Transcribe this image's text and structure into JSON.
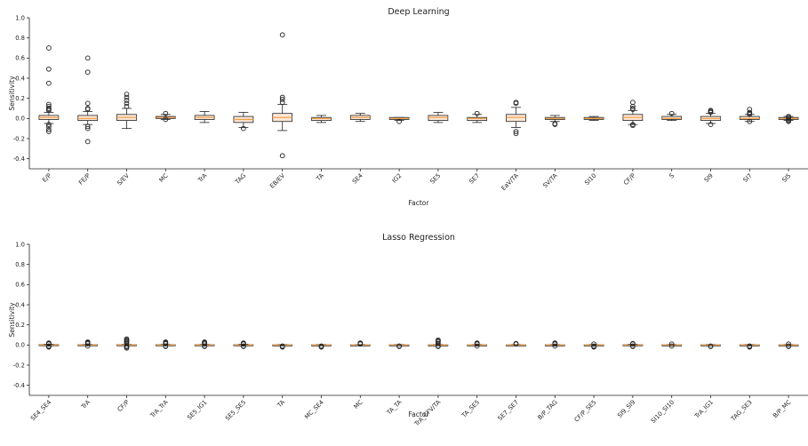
{
  "chart_data": [
    {
      "type": "box",
      "title": "Deep Learning",
      "xlabel": "Factor",
      "ylabel": "Sensitivity",
      "ylim": [
        -0.5,
        1.0
      ],
      "yticks": [
        "1.0",
        "0.8",
        "0.6",
        "0.4",
        "0.2",
        "0.0",
        "-0.2",
        "-0.4"
      ],
      "ytick_values": [
        1.0,
        0.8,
        0.6,
        0.4,
        0.2,
        0.0,
        -0.2,
        -0.4
      ],
      "categories": [
        "E/P",
        "FE/P",
        "S/EV",
        "MC",
        "TrA",
        "TAG",
        "EB/EV",
        "TA",
        "SE4",
        "IG2",
        "SE5",
        "SE7",
        "EaV/TA",
        "SV/TA",
        "SI10",
        "CF/P",
        "S",
        "SI9",
        "SI7",
        "SI5"
      ],
      "boxes": [
        {
          "q1": -0.01,
          "med": 0.01,
          "q3": 0.03,
          "wlo": -0.05,
          "whi": 0.06,
          "fliers": [
            0.7,
            0.49,
            0.35,
            0.14,
            0.12,
            0.1,
            0.09,
            0.08,
            -0.06,
            -0.08,
            -0.11,
            -0.13
          ]
        },
        {
          "q1": -0.02,
          "med": 0.0,
          "q3": 0.03,
          "wlo": -0.06,
          "whi": 0.07,
          "fliers": [
            0.6,
            0.46,
            0.15,
            0.1,
            0.09,
            -0.08,
            -0.1,
            -0.23
          ]
        },
        {
          "q1": -0.02,
          "med": 0.01,
          "q3": 0.04,
          "wlo": -0.1,
          "whi": 0.1,
          "fliers": [
            0.24,
            0.21,
            0.18,
            0.15,
            0.12
          ]
        },
        {
          "q1": 0.0,
          "med": 0.01,
          "q3": 0.02,
          "wlo": -0.01,
          "whi": 0.04,
          "fliers": [
            0.05,
            -0.01
          ]
        },
        {
          "q1": -0.01,
          "med": 0.01,
          "q3": 0.03,
          "wlo": -0.04,
          "whi": 0.07,
          "fliers": []
        },
        {
          "q1": -0.04,
          "med": -0.01,
          "q3": 0.02,
          "wlo": -0.09,
          "whi": 0.06,
          "fliers": [
            -0.1
          ]
        },
        {
          "q1": -0.03,
          "med": 0.01,
          "q3": 0.05,
          "wlo": -0.12,
          "whi": 0.14,
          "fliers": [
            0.83,
            0.21,
            0.19,
            0.16,
            -0.37
          ]
        },
        {
          "q1": -0.02,
          "med": 0.0,
          "q3": 0.01,
          "wlo": -0.04,
          "whi": 0.03,
          "fliers": []
        },
        {
          "q1": -0.01,
          "med": 0.01,
          "q3": 0.03,
          "wlo": -0.03,
          "whi": 0.05,
          "fliers": []
        },
        {
          "q1": -0.01,
          "med": 0.0,
          "q3": 0.01,
          "wlo": -0.02,
          "whi": 0.01,
          "fliers": [
            -0.03
          ]
        },
        {
          "q1": -0.02,
          "med": 0.01,
          "q3": 0.03,
          "wlo": -0.04,
          "whi": 0.06,
          "fliers": []
        },
        {
          "q1": -0.02,
          "med": 0.0,
          "q3": 0.01,
          "wlo": -0.04,
          "whi": 0.04,
          "fliers": [
            0.05
          ]
        },
        {
          "q1": -0.03,
          "med": 0.01,
          "q3": 0.04,
          "wlo": -0.09,
          "whi": 0.11,
          "fliers": [
            0.16,
            0.15,
            -0.13,
            -0.15
          ]
        },
        {
          "q1": -0.01,
          "med": 0.0,
          "q3": 0.01,
          "wlo": -0.03,
          "whi": 0.03,
          "fliers": [
            -0.05,
            -0.06
          ]
        },
        {
          "q1": -0.01,
          "med": 0.0,
          "q3": 0.01,
          "wlo": -0.02,
          "whi": 0.02,
          "fliers": []
        },
        {
          "q1": -0.02,
          "med": 0.01,
          "q3": 0.04,
          "wlo": -0.06,
          "whi": 0.08,
          "fliers": [
            0.16,
            0.12,
            0.1,
            0.09,
            -0.06,
            -0.07
          ]
        },
        {
          "q1": -0.01,
          "med": 0.0,
          "q3": 0.02,
          "wlo": -0.02,
          "whi": 0.04,
          "fliers": [
            0.05
          ]
        },
        {
          "q1": -0.02,
          "med": 0.0,
          "q3": 0.02,
          "wlo": -0.05,
          "whi": 0.05,
          "fliers": [
            0.08,
            0.07,
            0.06,
            -0.06
          ]
        },
        {
          "q1": -0.01,
          "med": 0.0,
          "q3": 0.02,
          "wlo": -0.03,
          "whi": 0.04,
          "fliers": [
            0.09,
            0.06,
            0.05,
            0.04,
            -0.03
          ]
        },
        {
          "q1": -0.01,
          "med": 0.0,
          "q3": 0.01,
          "wlo": -0.02,
          "whi": 0.02,
          "fliers": [
            0.02,
            0.01,
            -0.01,
            -0.02,
            -0.03
          ]
        }
      ]
    },
    {
      "type": "box",
      "title": "Lasso Regression",
      "xlabel": "Factor",
      "ylabel": "Sensitivity",
      "ylim": [
        -0.5,
        1.0
      ],
      "yticks": [
        "1.0",
        "0.8",
        "0.6",
        "0.4",
        "0.2",
        "0.0",
        "-0.2",
        "-0.4"
      ],
      "ytick_values": [
        1.0,
        0.8,
        0.6,
        0.4,
        0.2,
        0.0,
        -0.2,
        -0.4
      ],
      "categories": [
        "SE4_SE4",
        "TrA",
        "CF/P",
        "TrA_TrA",
        "SE5_IG1",
        "SE5_SE5",
        "TA",
        "MC_SE4",
        "MC",
        "TA_TA",
        "TrA_CFV/TA",
        "TA_SE5",
        "SE7_SE7",
        "B/P_TAG",
        "CF/P_SE5",
        "SI9_SI9",
        "SI10_SI10",
        "TrA_IG1",
        "TAG_SE3",
        "B/P_MC"
      ],
      "boxes": [
        {
          "q1": -0.003,
          "med": 0.0,
          "q3": 0.004,
          "wlo": -0.008,
          "whi": 0.008,
          "fliers": [
            0.02,
            0.015,
            0.01,
            -0.01,
            -0.015,
            -0.02
          ]
        },
        {
          "q1": -0.002,
          "med": 0.0,
          "q3": 0.003,
          "wlo": -0.006,
          "whi": 0.006,
          "fliers": [
            0.03,
            0.025,
            0.02,
            0.012,
            -0.01
          ]
        },
        {
          "q1": -0.002,
          "med": 0.0,
          "q3": 0.003,
          "wlo": -0.006,
          "whi": 0.006,
          "fliers": [
            0.06,
            0.05,
            0.04,
            0.03,
            0.02,
            -0.01,
            -0.02,
            -0.03
          ]
        },
        {
          "q1": -0.002,
          "med": 0.0,
          "q3": 0.003,
          "wlo": -0.006,
          "whi": 0.006,
          "fliers": [
            0.03,
            0.025,
            0.02,
            0.012,
            -0.01,
            -0.015
          ]
        },
        {
          "q1": -0.002,
          "med": 0.0,
          "q3": 0.003,
          "wlo": -0.006,
          "whi": 0.006,
          "fliers": [
            0.03,
            0.025,
            0.02,
            0.01,
            -0.01,
            -0.015
          ]
        },
        {
          "q1": -0.002,
          "med": 0.0,
          "q3": 0.003,
          "wlo": -0.008,
          "whi": 0.008,
          "fliers": [
            0.02,
            0.015,
            0.01,
            -0.01,
            -0.015
          ]
        },
        {
          "q1": -0.002,
          "med": 0.0,
          "q3": 0.002,
          "wlo": -0.005,
          "whi": 0.005,
          "fliers": [
            -0.01,
            -0.015,
            -0.02
          ]
        },
        {
          "q1": -0.002,
          "med": 0.0,
          "q3": 0.002,
          "wlo": -0.005,
          "whi": 0.005,
          "fliers": [
            -0.01,
            -0.015,
            -0.02
          ]
        },
        {
          "q1": -0.002,
          "med": 0.0,
          "q3": 0.002,
          "wlo": -0.005,
          "whi": 0.005,
          "fliers": [
            0.02,
            0.015,
            0.01
          ]
        },
        {
          "q1": -0.002,
          "med": 0.0,
          "q3": 0.002,
          "wlo": -0.005,
          "whi": 0.005,
          "fliers": [
            -0.01,
            -0.015
          ]
        },
        {
          "q1": -0.002,
          "med": 0.0,
          "q3": 0.002,
          "wlo": -0.005,
          "whi": 0.005,
          "fliers": [
            0.05,
            0.04,
            0.03,
            0.015,
            -0.01,
            -0.015
          ]
        },
        {
          "q1": -0.002,
          "med": 0.0,
          "q3": 0.002,
          "wlo": -0.005,
          "whi": 0.005,
          "fliers": [
            0.02,
            0.015,
            0.01,
            -0.01
          ]
        },
        {
          "q1": -0.002,
          "med": 0.0,
          "q3": 0.002,
          "wlo": -0.005,
          "whi": 0.005,
          "fliers": [
            0.015,
            0.01
          ]
        },
        {
          "q1": -0.002,
          "med": 0.0,
          "q3": 0.002,
          "wlo": -0.005,
          "whi": 0.005,
          "fliers": [
            0.02,
            0.015,
            0.01,
            -0.01
          ]
        },
        {
          "q1": -0.002,
          "med": 0.0,
          "q3": 0.002,
          "wlo": -0.005,
          "whi": 0.005,
          "fliers": [
            0.01,
            -0.01,
            -0.015,
            -0.02
          ]
        },
        {
          "q1": -0.003,
          "med": 0.0,
          "q3": 0.003,
          "wlo": -0.008,
          "whi": 0.008,
          "fliers": [
            0.015,
            0.01,
            -0.01,
            -0.015
          ]
        },
        {
          "q1": -0.002,
          "med": 0.0,
          "q3": 0.002,
          "wlo": -0.005,
          "whi": 0.005,
          "fliers": [
            0.01,
            -0.01
          ]
        },
        {
          "q1": -0.002,
          "med": 0.0,
          "q3": 0.002,
          "wlo": -0.005,
          "whi": 0.005,
          "fliers": [
            -0.01,
            -0.015
          ]
        },
        {
          "q1": -0.002,
          "med": 0.0,
          "q3": 0.002,
          "wlo": -0.005,
          "whi": 0.005,
          "fliers": [
            -0.01,
            -0.015,
            -0.02
          ]
        },
        {
          "q1": -0.002,
          "med": 0.0,
          "q3": 0.002,
          "wlo": -0.005,
          "whi": 0.005,
          "fliers": [
            0.01,
            -0.01,
            -0.015
          ]
        }
      ]
    }
  ]
}
